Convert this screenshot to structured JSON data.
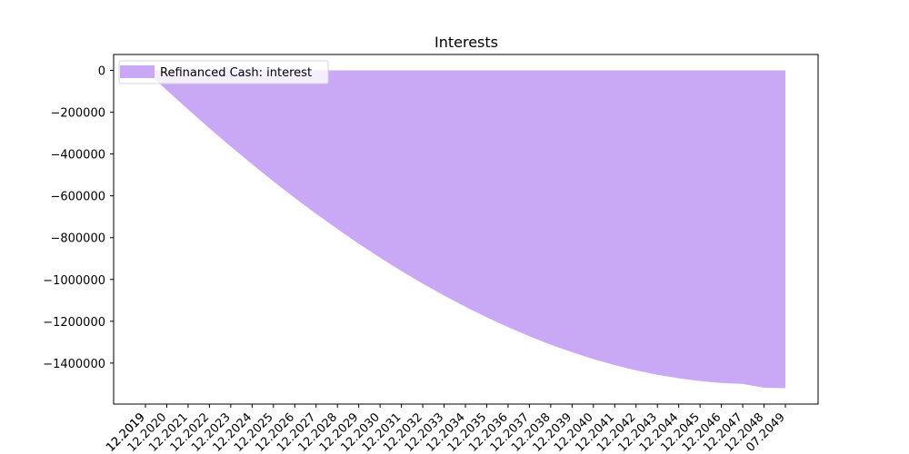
{
  "chart_data": {
    "type": "area",
    "title": "Interests",
    "xlabel": "",
    "ylabel": "",
    "legend_position": "top-left",
    "grid": false,
    "fill_color": "#c9a9f6",
    "series": [
      {
        "name": "Refinanced Cash: interest",
        "x": [
          "12.2019",
          "12.2020",
          "12.2021",
          "12.2022",
          "12.2023",
          "12.2024",
          "12.2025",
          "12.2026",
          "12.2027",
          "12.2028",
          "12.2029",
          "12.2030",
          "12.2031",
          "12.2032",
          "12.2033",
          "12.2034",
          "12.2035",
          "12.2036",
          "12.2037",
          "12.2038",
          "12.2039",
          "12.2040",
          "12.2041",
          "12.2042",
          "12.2043",
          "12.2044",
          "12.2045",
          "12.2046",
          "12.2047",
          "12.2048",
          "07.2049"
        ],
        "values": [
          0,
          -95000,
          -187000,
          -277000,
          -364000,
          -449000,
          -531000,
          -610000,
          -686000,
          -759000,
          -829000,
          -896000,
          -960000,
          -1020000,
          -1077000,
          -1131000,
          -1181000,
          -1228000,
          -1272000,
          -1312000,
          -1348000,
          -1381000,
          -1410000,
          -1435000,
          -1456000,
          -1473000,
          -1486000,
          -1495000,
          -1500000,
          -1518000,
          -1520000
        ]
      }
    ],
    "x_tick_labels": [
      "12.2019",
      "12.2019",
      "12.2020",
      "12.2021",
      "12.2022",
      "12.2023",
      "12.2024",
      "12.2025",
      "12.2026",
      "12.2027",
      "12.2028",
      "12.2029",
      "12.2030",
      "12.2031",
      "12.2032",
      "12.2033",
      "12.2034",
      "12.2035",
      "12.2036",
      "12.2037",
      "12.2038",
      "12.2039",
      "12.2040",
      "12.2041",
      "12.2042",
      "12.2043",
      "12.2044",
      "12.2045",
      "12.2046",
      "12.2047",
      "12.2048",
      "07.2049"
    ],
    "y_ticks": [
      0,
      -200000,
      -400000,
      -600000,
      -800000,
      -1000000,
      -1200000,
      -1400000
    ],
    "y_tick_labels": [
      "0",
      "−200000",
      "−400000",
      "−600000",
      "−800000",
      "−1000000",
      "−1200000",
      "−1400000"
    ],
    "ylim": [
      -1596000,
      76000
    ]
  }
}
